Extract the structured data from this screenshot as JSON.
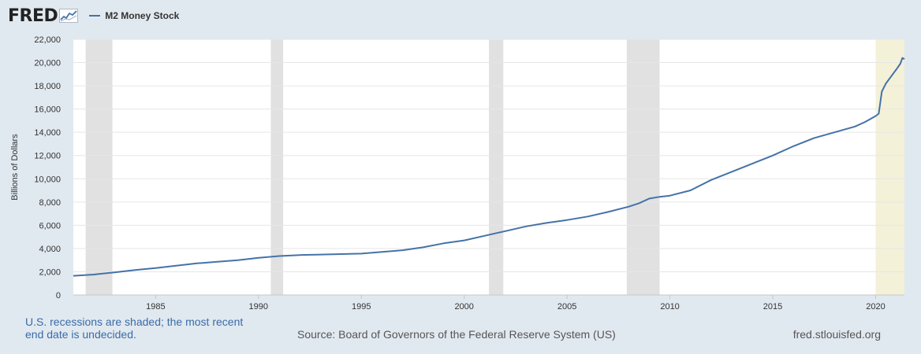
{
  "header": {
    "logo": "FRED",
    "series_name": "M2 Money Stock",
    "line_color": "#4572a7"
  },
  "footer": {
    "recession_note": "U.S. recessions are shaded; the most recent end date is undecided.",
    "source": "Source: Board of Governors of the Federal Reserve System (US)",
    "website": "fred.stlouisfed.org"
  },
  "chart_data": {
    "type": "line",
    "title": "",
    "xlabel": "",
    "ylabel": "Billions of Dollars",
    "xlim": [
      1981.0,
      2021.4
    ],
    "ylim": [
      0,
      22000
    ],
    "y_ticks": [
      0,
      2000,
      4000,
      6000,
      8000,
      10000,
      12000,
      14000,
      16000,
      18000,
      20000,
      22000
    ],
    "y_tick_labels": [
      "0",
      "2,000",
      "4,000",
      "6,000",
      "8,000",
      "10,000",
      "12,000",
      "14,000",
      "16,000",
      "18,000",
      "20,000",
      "22,000"
    ],
    "x_ticks": [
      1985,
      1990,
      1995,
      2000,
      2005,
      2010,
      2015,
      2020
    ],
    "x_tick_labels": [
      "1985",
      "1990",
      "1995",
      "2000",
      "2005",
      "2010",
      "2015",
      "2020"
    ],
    "grid": true,
    "recessions": [
      [
        1981.6,
        1982.9
      ],
      [
        1990.6,
        1991.2
      ],
      [
        2001.2,
        2001.9
      ],
      [
        2007.9,
        2009.5
      ]
    ],
    "current_recession": [
      2020.0,
      2021.4
    ],
    "recession_color": "#e1e1e1",
    "current_recession_color": "#f4f1d9",
    "series": [
      {
        "name": "M2 Money Stock",
        "color": "#4572a7",
        "x": [
          1981.0,
          1982.0,
          1983.0,
          1984.0,
          1985.0,
          1986.0,
          1987.0,
          1988.0,
          1989.0,
          1990.0,
          1991.0,
          1992.0,
          1993.0,
          1994.0,
          1995.0,
          1996.0,
          1997.0,
          1998.0,
          1999.0,
          2000.0,
          2001.0,
          2002.0,
          2003.0,
          2004.0,
          2005.0,
          2006.0,
          2007.0,
          2008.0,
          2008.5,
          2009.0,
          2009.5,
          2010.0,
          2011.0,
          2012.0,
          2013.0,
          2014.0,
          2015.0,
          2016.0,
          2017.0,
          2018.0,
          2019.0,
          2019.5,
          2020.0,
          2020.15,
          2020.3,
          2020.5,
          2020.75,
          2021.0,
          2021.2,
          2021.3,
          2021.4
        ],
        "values": [
          1650,
          1760,
          1950,
          2150,
          2320,
          2520,
          2720,
          2860,
          3000,
          3200,
          3350,
          3440,
          3480,
          3520,
          3560,
          3700,
          3850,
          4100,
          4450,
          4700,
          5100,
          5500,
          5900,
          6200,
          6450,
          6750,
          7150,
          7600,
          7900,
          8300,
          8450,
          8550,
          9000,
          9900,
          10600,
          11300,
          12000,
          12800,
          13500,
          14000,
          14500,
          14900,
          15400,
          15600,
          17500,
          18200,
          18800,
          19400,
          19900,
          20400,
          20300
        ]
      }
    ]
  }
}
